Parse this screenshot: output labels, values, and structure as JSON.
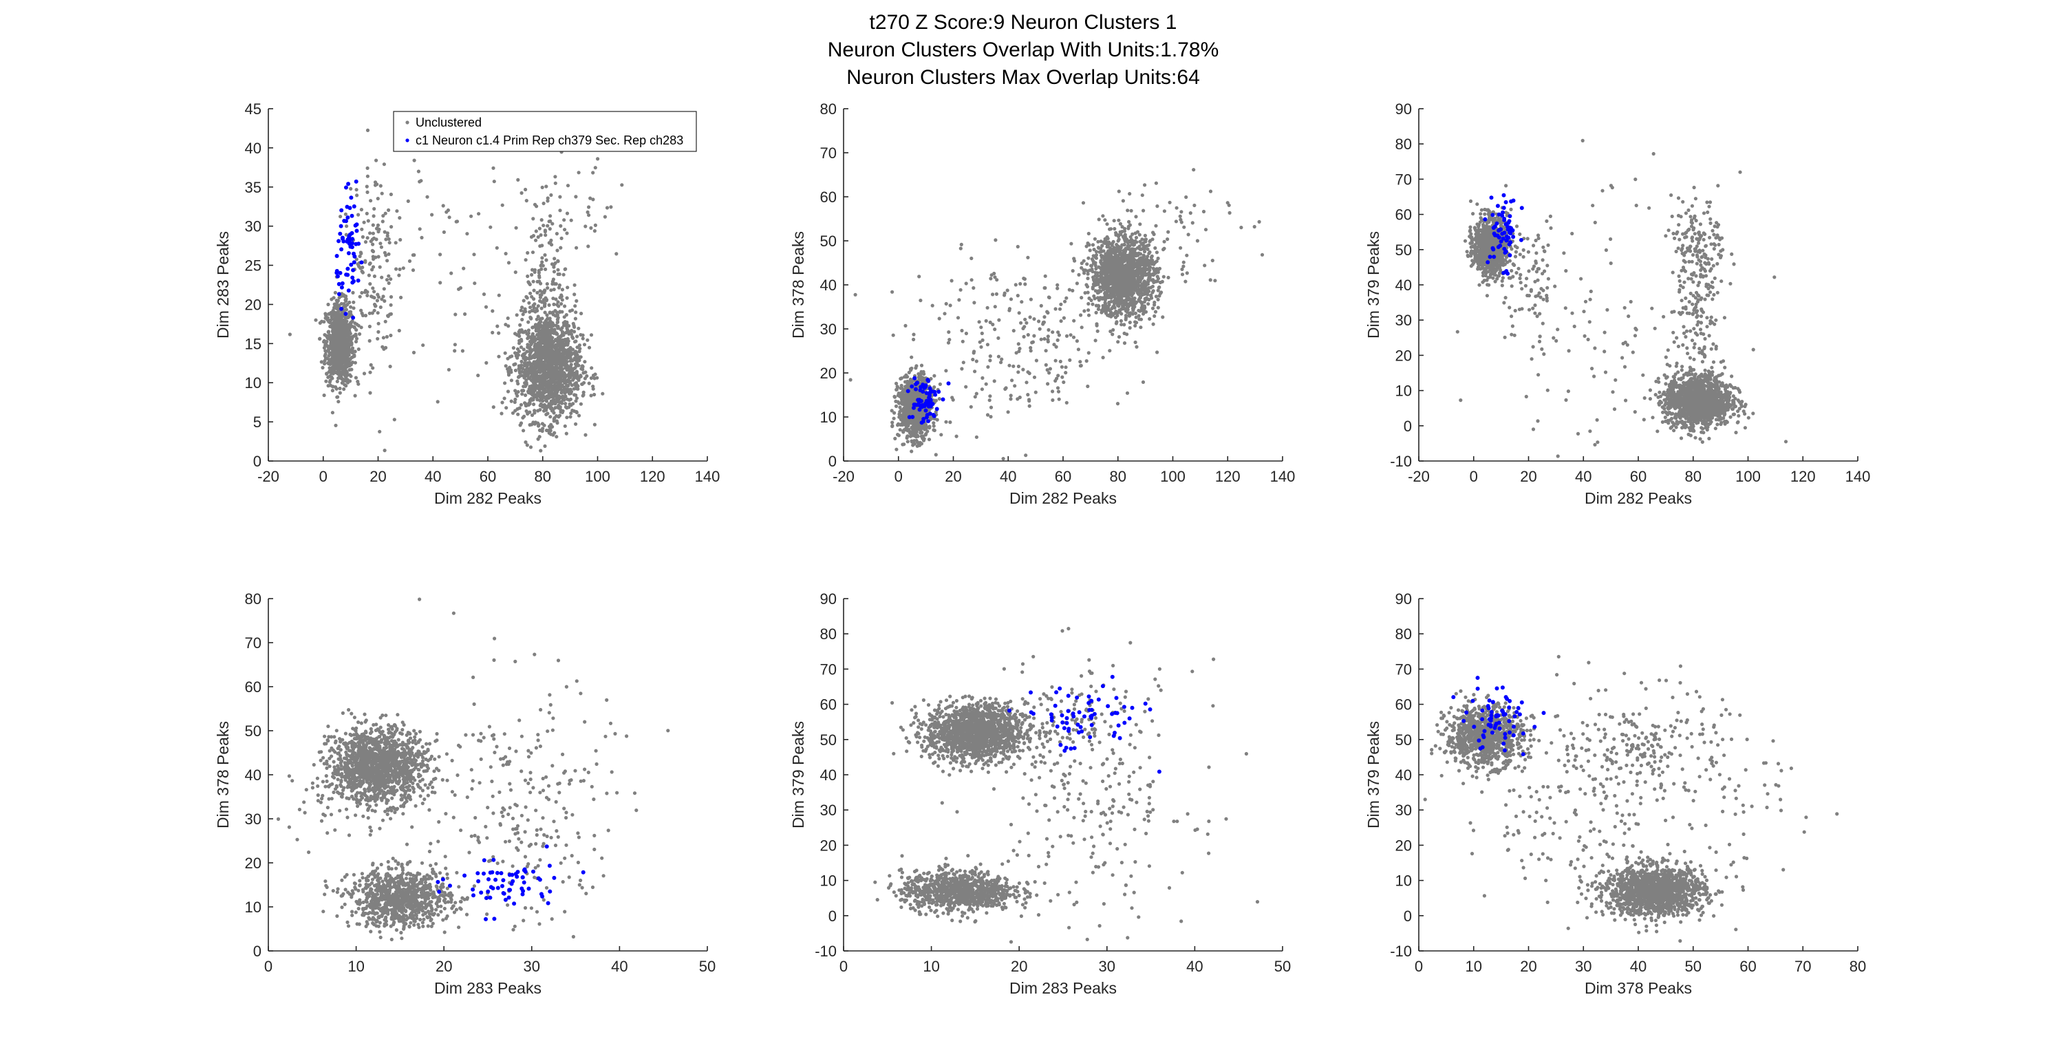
{
  "figure": {
    "title_lines": [
      "t270 Z Score:9 Neuron Clusters 1",
      "Neuron Clusters Overlap With Units:1.78%",
      "Neuron Clusters Max Overlap Units:64"
    ]
  },
  "colors": {
    "unclustered": "#808080",
    "cluster": "#0000ff",
    "axis": "#262626"
  },
  "legend": {
    "entries": [
      "Unclustered",
      "c1 Neuron c1.4 Prim Rep ch379 Sec. Rep ch283"
    ],
    "placement": "top-right of first panel"
  },
  "chart_data": [
    {
      "type": "scatter",
      "xlabel": "Dim 282 Peaks",
      "ylabel": "Dim 283 Peaks",
      "xlim": [
        -20,
        140
      ],
      "ylim": [
        0,
        45
      ],
      "xticks": [
        -20,
        0,
        20,
        40,
        60,
        80,
        100,
        120,
        140
      ],
      "yticks": [
        0,
        5,
        10,
        15,
        20,
        25,
        30,
        35,
        40,
        45
      ],
      "series": [
        {
          "name": "Unclustered",
          "clusters": [
            {
              "cx": 6,
              "cy": 15,
              "sx": 2.5,
              "sy": 2.6,
              "n": 900
            },
            {
              "cx": 82,
              "cy": 12,
              "sx": 6,
              "sy": 3.4,
              "n": 1400
            },
            {
              "cx": 82,
              "cy": 22,
              "sx": 4,
              "sy": 6,
              "n": 200
            },
            {
              "cx": 18,
              "cy": 25,
              "sx": 4,
              "sy": 7,
              "n": 150
            },
            {
              "cx": 45,
              "cy": 25,
              "sx": 20,
              "sy": 10,
              "n": 100
            },
            {
              "cx": 95,
              "cy": 32,
              "sx": 8,
              "sy": 4,
              "n": 30
            }
          ]
        },
        {
          "name": "c1 Neuron c1.4 Prim Rep ch379 Sec. Rep ch283",
          "clusters": [
            {
              "cx": 10,
              "cy": 27,
              "sx": 2.5,
              "sy": 3.2,
              "n": 64
            }
          ]
        }
      ]
    },
    {
      "type": "scatter",
      "xlabel": "Dim 282 Peaks",
      "ylabel": "Dim 378 Peaks",
      "xlim": [
        -20,
        140
      ],
      "ylim": [
        0,
        80
      ],
      "xticks": [
        -20,
        0,
        20,
        40,
        60,
        80,
        100,
        120,
        140
      ],
      "yticks": [
        0,
        10,
        20,
        30,
        40,
        50,
        60,
        70,
        80
      ],
      "series": [
        {
          "name": "Unclustered",
          "clusters": [
            {
              "cx": 6,
              "cy": 12,
              "sx": 3,
              "sy": 3.5,
              "n": 900
            },
            {
              "cx": 82,
              "cy": 42,
              "sx": 6,
              "sy": 4.5,
              "n": 1400
            },
            {
              "cx": 45,
              "cy": 27,
              "sx": 20,
              "sy": 9,
              "n": 250
            },
            {
              "cx": 100,
              "cy": 55,
              "sx": 12,
              "sy": 7,
              "n": 60
            }
          ]
        },
        {
          "name": "c1 Neuron c1.4 Prim Rep ch379 Sec. Rep ch283",
          "clusters": [
            {
              "cx": 9,
              "cy": 14,
              "sx": 2.8,
              "sy": 3,
              "n": 64
            }
          ]
        }
      ]
    },
    {
      "type": "scatter",
      "xlabel": "Dim 282 Peaks",
      "ylabel": "Dim 379 Peaks",
      "xlim": [
        -20,
        140
      ],
      "ylim": [
        -10,
        90
      ],
      "xticks": [
        -20,
        0,
        20,
        40,
        60,
        80,
        100,
        120,
        140
      ],
      "yticks": [
        -10,
        0,
        10,
        20,
        30,
        40,
        50,
        60,
        70,
        80,
        90
      ],
      "series": [
        {
          "name": "Unclustered",
          "clusters": [
            {
              "cx": 6,
              "cy": 51,
              "sx": 3,
              "sy": 4,
              "n": 900
            },
            {
              "cx": 82,
              "cy": 7,
              "sx": 6,
              "sy": 3.5,
              "n": 1400
            },
            {
              "cx": 82,
              "cy": 50,
              "sx": 5,
              "sy": 7,
              "n": 150
            },
            {
              "cx": 82,
              "cy": 28,
              "sx": 4,
              "sy": 12,
              "n": 150
            },
            {
              "cx": 20,
              "cy": 40,
              "sx": 6,
              "sy": 10,
              "n": 100
            },
            {
              "cx": 50,
              "cy": 30,
              "sx": 20,
              "sy": 20,
              "n": 100
            }
          ]
        },
        {
          "name": "c1 Neuron c1.4 Prim Rep ch379 Sec. Rep ch283",
          "clusters": [
            {
              "cx": 11,
              "cy": 55,
              "sx": 2.8,
              "sy": 5,
              "n": 64
            }
          ]
        }
      ]
    },
    {
      "type": "scatter",
      "xlabel": "Dim 283 Peaks",
      "ylabel": "Dim 378 Peaks",
      "xlim": [
        0,
        50
      ],
      "ylim": [
        0,
        80
      ],
      "xticks": [
        0,
        10,
        20,
        30,
        40,
        50
      ],
      "yticks": [
        0,
        10,
        20,
        30,
        40,
        50,
        60,
        70,
        80
      ],
      "series": [
        {
          "name": "Unclustered",
          "clusters": [
            {
              "cx": 12.5,
              "cy": 42,
              "sx": 2.7,
              "sy": 4.2,
              "n": 1400
            },
            {
              "cx": 15,
              "cy": 12,
              "sx": 2.8,
              "sy": 3.2,
              "n": 900
            },
            {
              "cx": 29,
              "cy": 32,
              "sx": 5,
              "sy": 15,
              "n": 250
            },
            {
              "cx": 8,
              "cy": 35,
              "sx": 4,
              "sy": 6,
              "n": 50
            }
          ]
        },
        {
          "name": "c1 Neuron c1.4 Prim Rep ch379 Sec. Rep ch283",
          "clusters": [
            {
              "cx": 27,
              "cy": 15,
              "sx": 3.2,
              "sy": 3.2,
              "n": 64
            }
          ]
        }
      ]
    },
    {
      "type": "scatter",
      "xlabel": "Dim 283 Peaks",
      "ylabel": "Dim 379 Peaks",
      "xlim": [
        0,
        50
      ],
      "ylim": [
        -10,
        90
      ],
      "xticks": [
        0,
        10,
        20,
        30,
        40,
        50
      ],
      "yticks": [
        -10,
        0,
        10,
        20,
        30,
        40,
        50,
        60,
        70,
        80,
        90
      ],
      "series": [
        {
          "name": "Unclustered",
          "clusters": [
            {
              "cx": 15,
              "cy": 52,
              "sx": 2.8,
              "sy": 4,
              "n": 1400
            },
            {
              "cx": 13,
              "cy": 7,
              "sx": 3.2,
              "sy": 2.8,
              "n": 900
            },
            {
              "cx": 28,
              "cy": 35,
              "sx": 6,
              "sy": 18,
              "n": 250
            },
            {
              "cx": 25,
              "cy": 55,
              "sx": 4,
              "sy": 5,
              "n": 80
            }
          ]
        },
        {
          "name": "c1 Neuron c1.4 Prim Rep ch379 Sec. Rep ch283",
          "clusters": [
            {
              "cx": 27,
              "cy": 56,
              "sx": 3.5,
              "sy": 5,
              "n": 64
            }
          ]
        }
      ]
    },
    {
      "type": "scatter",
      "xlabel": "Dim 378 Peaks",
      "ylabel": "Dim 379 Peaks",
      "xlim": [
        0,
        80
      ],
      "ylim": [
        -10,
        90
      ],
      "xticks": [
        0,
        10,
        20,
        30,
        40,
        50,
        60,
        70,
        80
      ],
      "yticks": [
        -10,
        0,
        10,
        20,
        30,
        40,
        50,
        60,
        70,
        80,
        90
      ],
      "series": [
        {
          "name": "Unclustered",
          "clusters": [
            {
              "cx": 12,
              "cy": 51,
              "sx": 3.5,
              "sy": 4.2,
              "n": 900
            },
            {
              "cx": 43,
              "cy": 7,
              "sx": 4.5,
              "sy": 3.4,
              "n": 1400
            },
            {
              "cx": 42,
              "cy": 48,
              "sx": 7,
              "sy": 8,
              "n": 200
            },
            {
              "cx": 30,
              "cy": 30,
              "sx": 12,
              "sy": 15,
              "n": 200
            },
            {
              "cx": 60,
              "cy": 30,
              "sx": 8,
              "sy": 10,
              "n": 40
            }
          ]
        },
        {
          "name": "c1 Neuron c1.4 Prim Rep ch379 Sec. Rep ch283",
          "clusters": [
            {
              "cx": 14,
              "cy": 56,
              "sx": 3.2,
              "sy": 4.5,
              "n": 64
            }
          ]
        }
      ]
    }
  ]
}
